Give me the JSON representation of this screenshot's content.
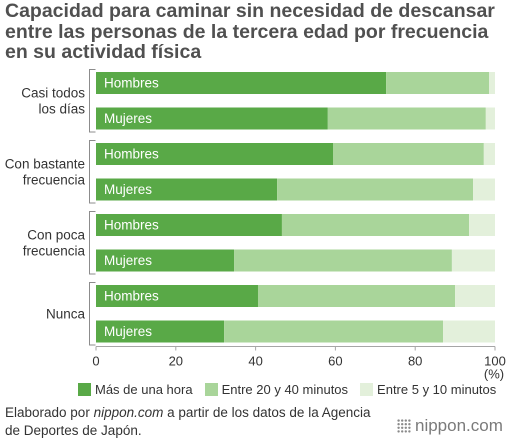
{
  "chart_data": {
    "type": "bar",
    "orientation": "horizontal",
    "stacking": "percent",
    "title": "Capacidad para caminar sin necesidad de descansar entre las personas de la tercera edad por frecuencia en su actividad física",
    "groups": [
      {
        "label_lines": [
          "Casi todos",
          "los días"
        ],
        "bars": [
          "Hombres",
          "Mujeres"
        ]
      },
      {
        "label_lines": [
          "Con bastante",
          "frecuencia"
        ],
        "bars": [
          "Hombres",
          "Mujeres"
        ]
      },
      {
        "label_lines": [
          "Con poca",
          "frecuencia"
        ],
        "bars": [
          "Hombres",
          "Mujeres"
        ]
      },
      {
        "label_lines": [
          "Nunca"
        ],
        "bars": [
          "Hombres",
          "Mujeres"
        ]
      }
    ],
    "series": [
      {
        "name": "Más de una hora",
        "color": "#59a947",
        "values": [
          72.7,
          58.1,
          59.4,
          45.4,
          46.6,
          34.6,
          40.6,
          32.1
        ]
      },
      {
        "name": "Entre 20 y 40 minutos",
        "color": "#a9d59a",
        "values": [
          25.8,
          39.6,
          37.8,
          49.1,
          46.9,
          54.6,
          49.4,
          54.9
        ]
      },
      {
        "name": "Entre 5 y 10 minutos",
        "color": "#e3f0db",
        "values": [
          1.5,
          2.3,
          2.8,
          5.5,
          6.5,
          10.8,
          10.0,
          13.0
        ]
      }
    ],
    "xticks": [
      0,
      20,
      40,
      60,
      80,
      100
    ],
    "xunit": "(%)",
    "xlim": [
      0,
      100
    ],
    "grid": false,
    "legend": "bottom"
  },
  "footer": {
    "prefix": "Elaborado por ",
    "site": "nippon.com",
    "line1_suffix": " a partir de los datos de la Agencia",
    "line2": "de Deportes de Japón."
  },
  "branding": {
    "logo_text": "nippon.com"
  }
}
